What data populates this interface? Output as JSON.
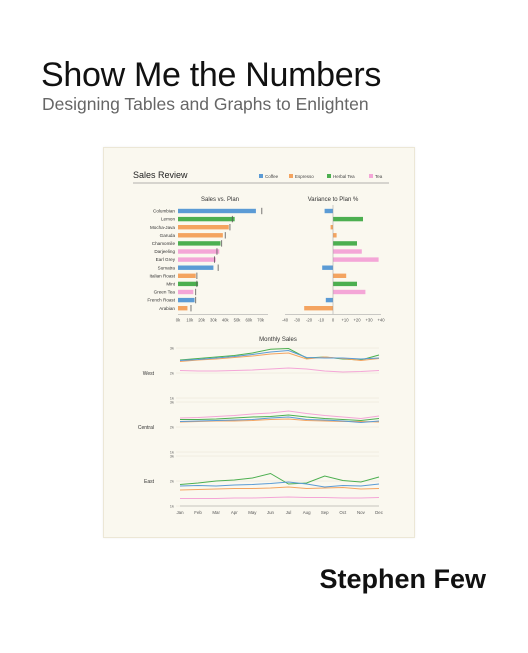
{
  "cover": {
    "title": "Show Me the Numbers",
    "subtitle": "Designing Tables and Graphs to Enlighten",
    "author": "Stephen Few"
  },
  "dashboard": {
    "title": "Sales Review",
    "legend": [
      {
        "name": "Coffee",
        "color": "#5b9bd5"
      },
      {
        "name": "Espresso",
        "color": "#f4a460"
      },
      {
        "name": "Herbal Tea",
        "color": "#4caf50"
      },
      {
        "name": "Tea",
        "color": "#f4a6d7"
      }
    ]
  },
  "chart_data": [
    {
      "type": "bar",
      "title": "Sales vs. Plan",
      "categories": [
        "Columbian",
        "Lemon",
        "Mocha-Java",
        "Garuda",
        "Chamomile",
        "Darjeeling",
        "Earl Grey",
        "Sumatra",
        "Italian Roast",
        "Mint",
        "Green Tea",
        "French Roast",
        "Arabian"
      ],
      "category_type": [
        "Coffee",
        "Herbal Tea",
        "Espresso",
        "Espresso",
        "Herbal Tea",
        "Tea",
        "Tea",
        "Coffee",
        "Espresso",
        "Herbal Tea",
        "Tea",
        "Coffee",
        "Espresso"
      ],
      "values": [
        66000,
        48000,
        43000,
        38000,
        36000,
        35000,
        32000,
        30000,
        15000,
        17000,
        13000,
        14000,
        8000
      ],
      "plan": [
        71000,
        46000,
        44000,
        40000,
        37000,
        33000,
        31000,
        34000,
        16000,
        16000,
        15000,
        15000,
        11000
      ],
      "xtick_labels": [
        "0k",
        "10k",
        "20k",
        "30k",
        "40k",
        "50k",
        "60k",
        "70k"
      ],
      "xlim": [
        0,
        72000
      ]
    },
    {
      "type": "bar",
      "title": "Variance to Plan %",
      "categories": [
        "Columbian",
        "Lemon",
        "Mocha-Java",
        "Garuda",
        "Chamomile",
        "Darjeeling",
        "Earl Grey",
        "Sumatra",
        "Italian Roast",
        "Mint",
        "Green Tea",
        "French Roast",
        "Arabian"
      ],
      "values": [
        -7,
        25,
        -2,
        3,
        20,
        24,
        38,
        -9,
        11,
        20,
        27,
        -6,
        -24
      ],
      "xtick_labels": [
        "-40",
        "-30",
        "-20",
        "-10",
        "0",
        "+10",
        "+20",
        "+30",
        "+40"
      ],
      "xlim": [
        -40,
        40
      ]
    },
    {
      "type": "line",
      "title": "Monthly Sales",
      "x": [
        "Jan",
        "Feb",
        "Mar",
        "Apr",
        "May",
        "Jun",
        "Jul",
        "Aug",
        "Sep",
        "Oct",
        "Nov",
        "Dec"
      ],
      "ytick_labels": [
        "1k",
        "2k",
        "3k"
      ],
      "ylim": [
        1000,
        3000
      ],
      "panels": [
        {
          "region": "West",
          "series": [
            {
              "values": [
                2520,
                2580,
                2640,
                2700,
                2800,
                2950,
                2980,
                2600,
                2640,
                2560,
                2520,
                2720
              ]
            },
            {
              "values": [
                2460,
                2520,
                2560,
                2620,
                2680,
                2760,
                2800,
                2560,
                2640,
                2580,
                2500,
                2580
              ]
            },
            {
              "values": [
                2500,
                2540,
                2600,
                2660,
                2740,
                2840,
                2900,
                2620,
                2600,
                2600,
                2560,
                2600
              ]
            },
            {
              "values": [
                2100,
                2080,
                2080,
                2100,
                2120,
                2160,
                2200,
                2160,
                2080,
                2040,
                2060,
                2100
              ]
            }
          ]
        },
        {
          "region": "Central",
          "series": [
            {
              "values": [
                2300,
                2300,
                2320,
                2360,
                2400,
                2420,
                2480,
                2400,
                2340,
                2300,
                2260,
                2340
              ]
            },
            {
              "values": [
                2200,
                2220,
                2240,
                2240,
                2260,
                2300,
                2320,
                2260,
                2240,
                2220,
                2220,
                2200
              ]
            },
            {
              "values": [
                2220,
                2240,
                2260,
                2280,
                2300,
                2360,
                2400,
                2300,
                2280,
                2240,
                2180,
                2240
              ]
            },
            {
              "values": [
                2360,
                2380,
                2420,
                2460,
                2520,
                2560,
                2640,
                2540,
                2460,
                2400,
                2340,
                2440
              ]
            }
          ]
        },
        {
          "region": "East",
          "series": [
            {
              "values": [
                1860,
                1920,
                2000,
                2040,
                2120,
                2300,
                1880,
                1920,
                2200,
                2020,
                1960,
                2160
              ]
            },
            {
              "values": [
                1640,
                1660,
                1680,
                1700,
                1700,
                1720,
                1760,
                1700,
                1720,
                1740,
                1680,
                1700
              ]
            },
            {
              "values": [
                1800,
                1820,
                1800,
                1840,
                1860,
                1900,
                1960,
                1880,
                1760,
                1820,
                1800,
                1880
              ]
            },
            {
              "values": [
                1300,
                1300,
                1300,
                1320,
                1320,
                1340,
                1360,
                1340,
                1340,
                1320,
                1320,
                1340
              ]
            }
          ]
        }
      ],
      "series_colors": [
        "#4caf50",
        "#f4a460",
        "#5b9bd5",
        "#f4a6d7"
      ]
    }
  ]
}
